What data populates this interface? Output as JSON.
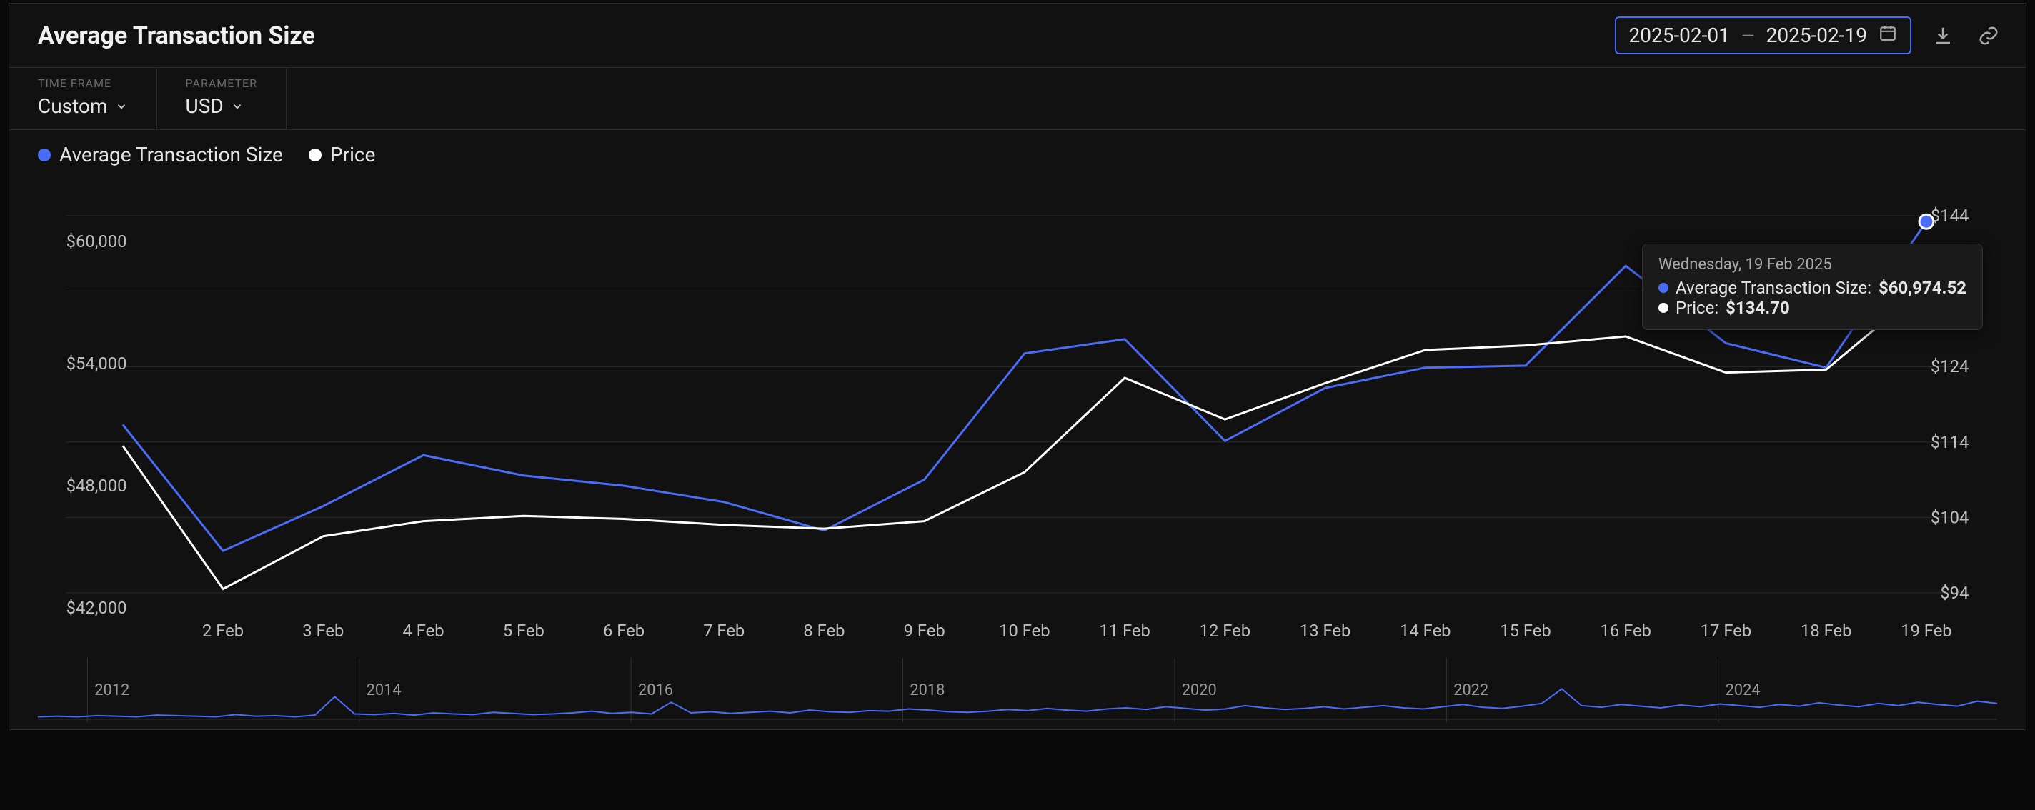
{
  "header": {
    "title": "Average Transaction Size",
    "date_start": "2025-02-01",
    "date_end": "2025-02-19"
  },
  "controls": {
    "timeframe_label": "TIME FRAME",
    "timeframe_value": "Custom",
    "parameter_label": "PARAMETER",
    "parameter_value": "USD"
  },
  "legend": {
    "series1_label": "Average Transaction Size",
    "series1_color": "#4a6cf7",
    "series2_label": "Price",
    "series2_color": "#ffffff"
  },
  "tooltip": {
    "date": "Wednesday, 19 Feb 2025",
    "s1_label": "Average Transaction Size:",
    "s1_value": "$60,974.52",
    "s2_label": "Price:",
    "s2_value": "$134.70"
  },
  "chart": {
    "type": "line",
    "background_color": "#111111",
    "grid_color": "#2a2a2a",
    "text_color": "#bdbdbd",
    "x_labels": [
      "2 Feb",
      "3 Feb",
      "4 Feb",
      "5 Feb",
      "6 Feb",
      "7 Feb",
      "8 Feb",
      "9 Feb",
      "10 Feb",
      "11 Feb",
      "12 Feb",
      "13 Feb",
      "14 Feb",
      "15 Feb",
      "16 Feb",
      "17 Feb",
      "18 Feb",
      "19 Feb"
    ],
    "left_axis": {
      "min": 42000,
      "max": 62000,
      "ticks": [
        42000,
        48000,
        54000,
        60000
      ],
      "tick_labels": [
        "$42,000",
        "$48,000",
        "$54,000",
        "$60,000"
      ]
    },
    "right_axis": {
      "min": 92,
      "max": 146,
      "ticks": [
        94,
        104,
        114,
        124,
        134,
        144
      ],
      "tick_labels": [
        "$94",
        "$104",
        "$114",
        "$124",
        "$134",
        "$144"
      ]
    },
    "series1": {
      "name": "Average Transaction Size",
      "color": "#4a6cf7",
      "line_width": 3,
      "values": [
        51000,
        44800,
        47000,
        49500,
        48500,
        48000,
        47200,
        45800,
        48300,
        54500,
        55200,
        50200,
        52800,
        53800,
        53900,
        58800,
        55000,
        53800,
        60975
      ]
    },
    "series2": {
      "name": "Price",
      "color": "#ffffff",
      "line_width": 3,
      "values": [
        113.5,
        94.5,
        101.5,
        103.5,
        104.2,
        103.8,
        103.0,
        102.5,
        103.5,
        110.0,
        122.5,
        117.0,
        121.8,
        126.2,
        126.8,
        128.0,
        123.2,
        123.6,
        134.7
      ]
    },
    "highlight_index": 18,
    "label_fontsize": 24
  },
  "mini_chart": {
    "year_labels": [
      "2012",
      "2014",
      "2016",
      "2018",
      "2020",
      "2022",
      "2024"
    ],
    "color": "#4a6cf7",
    "background": "#141414",
    "values_pct": [
      2,
      3,
      2,
      4,
      3,
      2,
      5,
      4,
      3,
      2,
      6,
      3,
      4,
      2,
      5,
      38,
      7,
      6,
      8,
      5,
      9,
      7,
      6,
      10,
      8,
      6,
      7,
      9,
      12,
      8,
      10,
      7,
      28,
      9,
      11,
      8,
      10,
      12,
      9,
      14,
      11,
      10,
      13,
      12,
      16,
      14,
      11,
      10,
      12,
      15,
      13,
      17,
      14,
      12,
      16,
      18,
      15,
      20,
      17,
      14,
      16,
      22,
      18,
      15,
      17,
      20,
      16,
      19,
      22,
      18,
      16,
      20,
      24,
      19,
      17,
      21,
      26,
      52,
      22,
      19,
      24,
      21,
      18,
      23,
      20,
      25,
      22,
      19,
      24,
      21,
      27,
      23,
      20,
      26,
      22,
      28,
      24,
      21,
      30,
      26
    ]
  }
}
